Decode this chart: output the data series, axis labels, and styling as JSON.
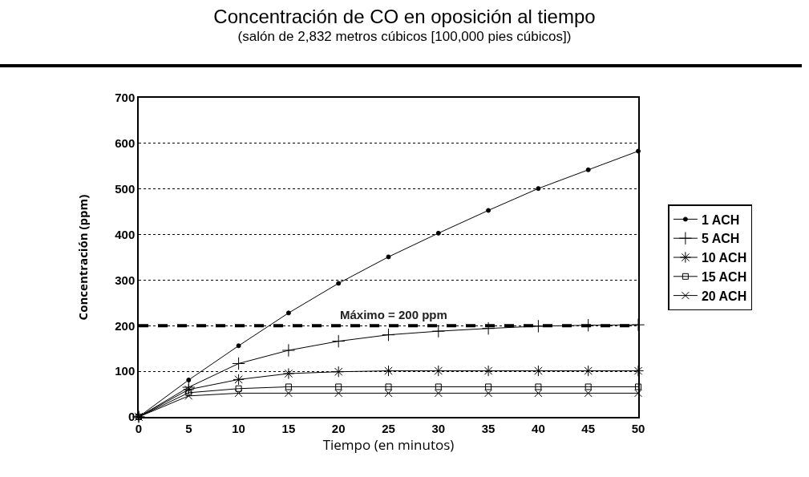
{
  "chart_data": {
    "type": "line",
    "title": "Concentración de CO en oposición al tiempo",
    "subtitle": "(salón de 2,832 metros cúbicos [100,000 pies cúbicos])",
    "xlabel": "Tiempo (en minutos)",
    "ylabel": "Concentración (ppm)",
    "x": [
      0,
      5,
      10,
      15,
      20,
      25,
      30,
      35,
      40,
      45,
      50
    ],
    "series": [
      {
        "name": "1 ACH",
        "color": "#000000",
        "marker": "circle",
        "values": [
          0,
          81,
          156,
          228,
          293,
          351,
          403,
          453,
          501,
          542,
          583
        ]
      },
      {
        "name": "5 ACH",
        "color": "#000000",
        "marker": "cross",
        "values": [
          0,
          65,
          117,
          146,
          166,
          180,
          188,
          194,
          199,
          201,
          202
        ]
      },
      {
        "name": "10 ACH",
        "color": "#000000",
        "marker": "cross",
        "values": [
          0,
          60,
          82,
          95,
          99,
          101,
          101,
          101,
          101,
          101,
          101
        ]
      },
      {
        "name": "15 ACH",
        "color": "#000000",
        "marker": "square",
        "values": [
          0,
          53,
          62,
          66,
          66,
          66,
          66,
          66,
          66,
          66,
          66
        ]
      },
      {
        "name": "20 ACH",
        "color": "#000000",
        "marker": "x",
        "values": [
          0,
          46,
          52,
          52,
          52,
          52,
          52,
          52,
          52,
          52,
          52
        ]
      }
    ],
    "xlim": [
      0,
      50
    ],
    "xticks": [
      0,
      5,
      10,
      15,
      20,
      25,
      30,
      35,
      40,
      45,
      50
    ],
    "ylim": [
      0,
      700
    ],
    "yticks": [
      0,
      100,
      200,
      300,
      400,
      500,
      600,
      700
    ],
    "grid": "y",
    "legend": "right",
    "line_style": "solid",
    "ref_lines": [
      {
        "axis": "y",
        "value": 200,
        "label": "Máximo = 200 ppm",
        "color": "#000000",
        "line_style": "dashed"
      }
    ]
  }
}
